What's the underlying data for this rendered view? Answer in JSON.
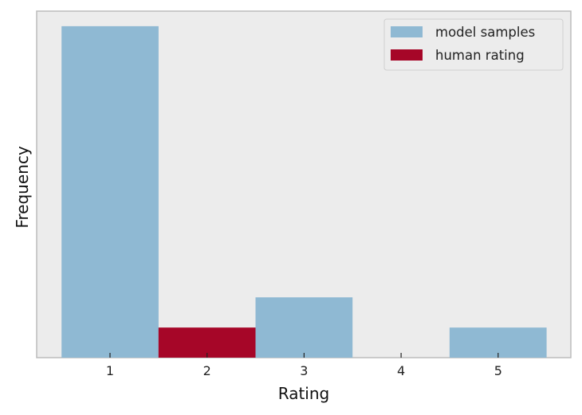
{
  "chart_data": {
    "type": "bar",
    "categories": [
      "1",
      "2",
      "3",
      "4",
      "5"
    ],
    "series": [
      {
        "name": "model samples",
        "color": "#8fb9d3",
        "values": [
          11,
          0,
          2,
          0,
          1
        ]
      },
      {
        "name": "human rating",
        "color": "#a60628",
        "values": [
          0,
          1,
          0,
          0,
          0
        ]
      }
    ],
    "xlabel": "Rating",
    "ylabel": "Frequency",
    "ylim": [
      0,
      11.5
    ],
    "y_ticks_shown": false,
    "grid": false,
    "legend_position": "top-right",
    "background_color": "#ececec",
    "frame_color": "#bcbcbc"
  }
}
